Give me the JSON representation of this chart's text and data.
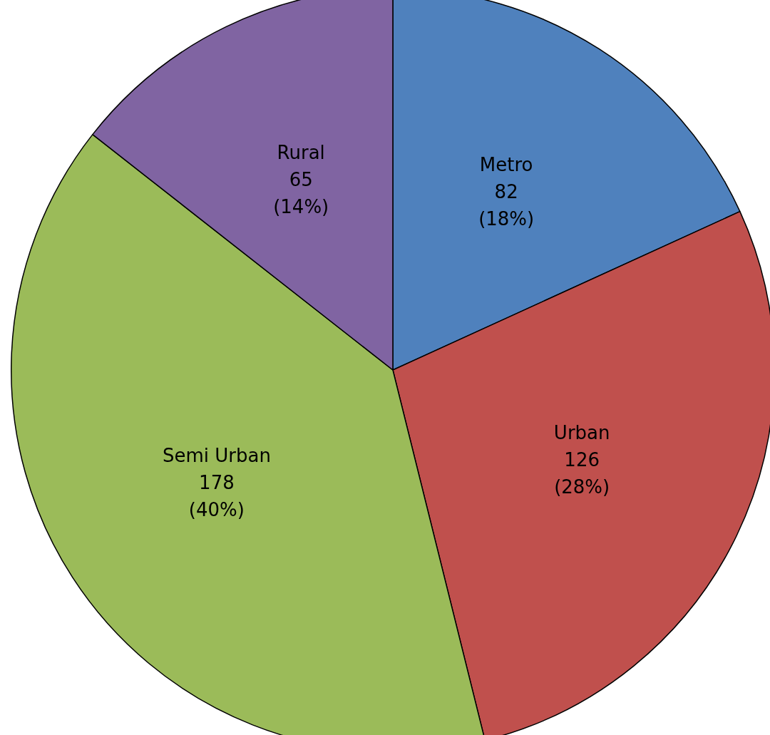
{
  "chart_data": {
    "type": "pie",
    "categories": [
      "Metro",
      "Urban",
      "Semi Urban",
      "Rural"
    ],
    "values": [
      82,
      126,
      178,
      65
    ],
    "colors": [
      "#4f81bd",
      "#c0504d",
      "#9bbb59",
      "#8064a2"
    ],
    "value_labels": [
      "82 (18%)",
      "126 (28%)",
      "178 (40%)",
      "65 (14%)"
    ],
    "legend": false
  }
}
